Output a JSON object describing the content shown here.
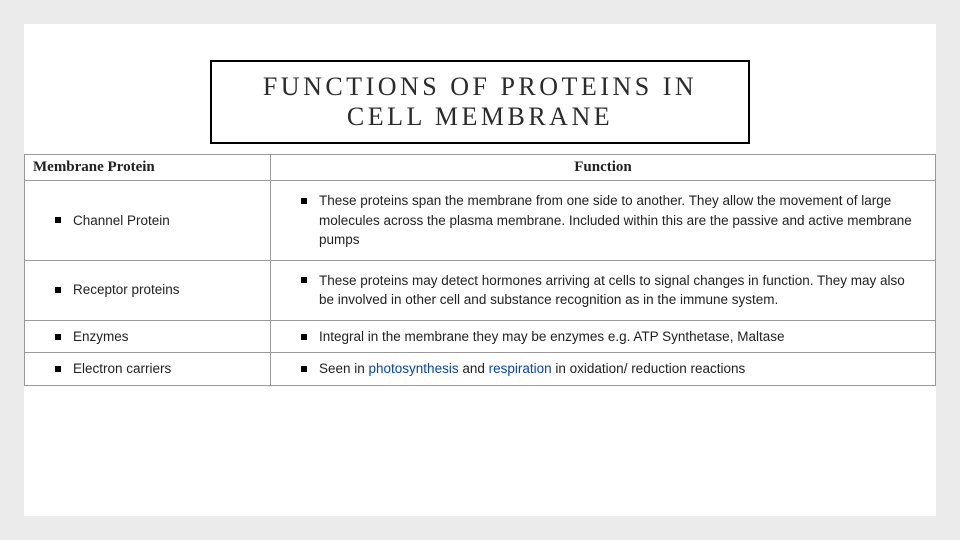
{
  "title": "FUNCTIONS OF PROTEINS IN CELL MEMBRANE",
  "table": {
    "headers": {
      "col1": "Membrane Protein",
      "col2": "Function"
    },
    "rows": [
      {
        "name": "Channel Protein",
        "func_pre": "These proteins span the membrane from one side to another. They allow the movement of large molecules across the plasma membrane. Included within this are the passive and active membrane pumps"
      },
      {
        "name": "Receptor proteins",
        "func_pre": "These proteins may detect hormones arriving at cells to signal changes in function. They may also be involved in other cell and substance recognition as in the immune system."
      },
      {
        "name": "Enzymes",
        "func_pre": "Integral in the membrane they may be enzymes e.g. ATP Synthetase, Maltase"
      },
      {
        "name": "Electron carriers",
        "func_pre": "Seen in ",
        "func_link1": "photosynthesis",
        "func_mid": " and ",
        "func_link2": "respiration",
        "func_post": " in oxidation/ reduction reactions"
      }
    ]
  },
  "colors": {
    "page_bg": "#ebebeb",
    "slide_bg": "#ffffff",
    "border": "#9a9a9a",
    "text": "#222222",
    "link": "#0645ad",
    "bullet": "#000000"
  }
}
